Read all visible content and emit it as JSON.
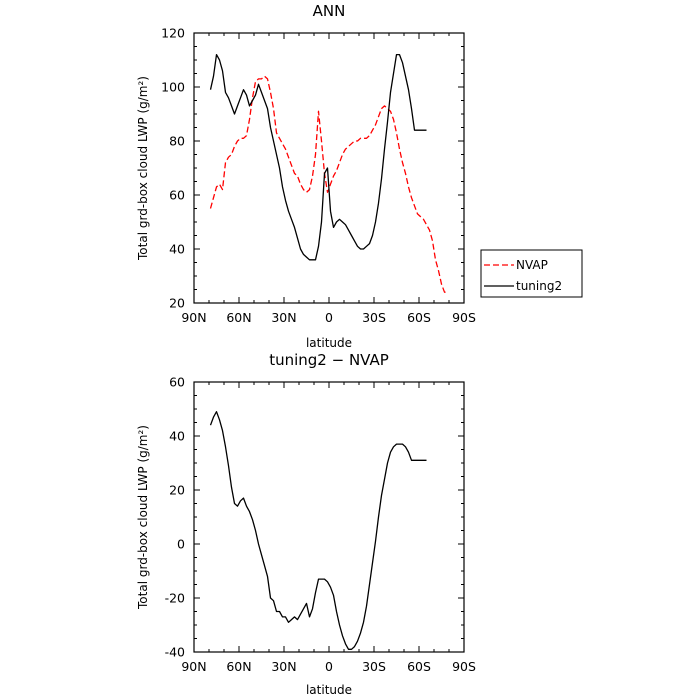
{
  "chart_data": [
    {
      "type": "line",
      "title": "ANN",
      "xlabel": "latitude",
      "ylabel": "Total grd-box cloud LWP (g/m²)",
      "xlim": [
        90,
        -90
      ],
      "ylim": [
        20,
        120
      ],
      "x_ticks": [
        90,
        60,
        30,
        0,
        -30,
        -60,
        -90
      ],
      "x_tick_labels": [
        "90N",
        "60N",
        "30N",
        "0",
        "30S",
        "60S",
        "90S"
      ],
      "y_ticks": [
        20,
        40,
        60,
        80,
        100,
        120
      ],
      "legend_position": "right",
      "series": [
        {
          "name": "NVAP",
          "color": "#ff0000",
          "dash": "dashed",
          "x": [
            79,
            77,
            75,
            73,
            71,
            69,
            67,
            65,
            63,
            61,
            59,
            57,
            55,
            53,
            51,
            49,
            47,
            45,
            43,
            41,
            39,
            37,
            35,
            33,
            31,
            29,
            27,
            25,
            23,
            21,
            19,
            17,
            15,
            13,
            11,
            9,
            7,
            5,
            3,
            1,
            -1,
            -3,
            -5,
            -7,
            -9,
            -11,
            -13,
            -15,
            -17,
            -19,
            -21,
            -23,
            -25,
            -27,
            -29,
            -31,
            -33,
            -35,
            -37,
            -39,
            -41,
            -43,
            -45,
            -47,
            -49,
            -51,
            -53,
            -55,
            -57,
            -59,
            -61,
            -63,
            -65,
            -67,
            -69,
            -71,
            -73,
            -75,
            -77,
            -79
          ],
          "y": [
            55,
            59,
            63,
            64,
            62,
            72,
            74,
            75,
            78,
            80,
            81,
            81,
            82,
            88,
            96,
            102,
            103,
            103,
            104,
            103,
            98,
            92,
            83,
            81,
            79,
            77,
            74,
            71,
            68,
            67,
            64,
            62,
            61,
            62,
            67,
            75,
            91,
            80,
            68,
            61,
            64,
            67,
            69,
            72,
            75,
            77,
            78,
            79,
            80,
            80,
            81,
            81,
            81,
            82,
            84,
            86,
            89,
            92,
            93,
            92,
            91,
            88,
            83,
            77,
            72,
            68,
            63,
            59,
            56,
            53,
            52,
            51,
            49,
            47,
            43,
            36,
            32,
            27,
            24,
            24
          ]
        },
        {
          "name": "tuning2",
          "color": "#000000",
          "dash": "solid",
          "x": [
            79,
            77,
            75,
            73,
            71,
            69,
            67,
            65,
            63,
            61,
            59,
            57,
            55,
            53,
            51,
            49,
            47,
            45,
            43,
            41,
            39,
            37,
            35,
            33,
            31,
            29,
            27,
            25,
            23,
            21,
            19,
            17,
            15,
            13,
            11,
            9,
            7,
            5,
            3,
            1,
            -1,
            -3,
            -5,
            -7,
            -9,
            -11,
            -13,
            -15,
            -17,
            -19,
            -21,
            -23,
            -25,
            -27,
            -29,
            -31,
            -33,
            -35,
            -37,
            -39,
            -41,
            -43,
            -45,
            -47,
            -49,
            -51,
            -53,
            -55,
            -57,
            -59,
            -61,
            -63,
            -65
          ],
          "y": [
            99,
            104,
            112,
            110,
            106,
            98,
            96,
            93,
            90,
            93,
            96,
            99,
            97,
            93,
            95,
            97,
            101,
            98,
            95,
            92,
            85,
            80,
            75,
            70,
            63,
            58,
            54,
            51,
            48,
            44,
            40,
            38,
            37,
            36,
            36,
            36,
            41,
            50,
            68,
            70,
            54,
            48,
            50,
            51,
            50,
            49,
            47,
            45,
            43,
            41,
            40,
            40,
            41,
            42,
            45,
            50,
            57,
            66,
            77,
            87,
            98,
            105,
            112,
            112,
            109,
            104,
            99,
            92,
            84,
            84,
            84,
            84,
            84
          ]
        }
      ]
    },
    {
      "type": "line",
      "title": "tuning2 − NVAP",
      "xlabel": "latitude",
      "ylabel": "Total grd-box cloud LWP (g/m²)",
      "xlim": [
        90,
        -90
      ],
      "ylim": [
        -40,
        60
      ],
      "x_ticks": [
        90,
        60,
        30,
        0,
        -30,
        -60,
        -90
      ],
      "x_tick_labels": [
        "90N",
        "60N",
        "30N",
        "0",
        "30S",
        "60S",
        "90S"
      ],
      "y_ticks": [
        -40,
        -20,
        0,
        20,
        40,
        60
      ],
      "series": [
        {
          "color": "#000000",
          "dash": "solid",
          "x": [
            79,
            77,
            75,
            73,
            71,
            69,
            67,
            65,
            63,
            61,
            59,
            57,
            55,
            53,
            51,
            49,
            47,
            45,
            43,
            41,
            39,
            37,
            35,
            33,
            31,
            29,
            27,
            25,
            23,
            21,
            19,
            17,
            15,
            13,
            11,
            9,
            7,
            5,
            3,
            1,
            -1,
            -3,
            -5,
            -7,
            -9,
            -11,
            -13,
            -15,
            -17,
            -19,
            -21,
            -23,
            -25,
            -27,
            -29,
            -31,
            -33,
            -35,
            -37,
            -39,
            -41,
            -43,
            -45,
            -47,
            -49,
            -51,
            -53,
            -55,
            -57,
            -59,
            -61,
            -63,
            -65
          ],
          "y": [
            44,
            47,
            49,
            46,
            42,
            36,
            29,
            21,
            15,
            14,
            16,
            17,
            14,
            12,
            9,
            5,
            0,
            -4,
            -8,
            -12,
            -20,
            -21,
            -25,
            -25,
            -27,
            -27,
            -29,
            -28,
            -27,
            -28,
            -26,
            -24,
            -22,
            -27,
            -24,
            -18,
            -13,
            -13,
            -13,
            -14,
            -16,
            -19,
            -25,
            -30,
            -34,
            -37,
            -39,
            -39,
            -38,
            -36,
            -33,
            -29,
            -23,
            -15,
            -7,
            1,
            10,
            18,
            24,
            30,
            34,
            36,
            37,
            37,
            37,
            36,
            34,
            31,
            31,
            31,
            31,
            31,
            31
          ]
        }
      ]
    }
  ]
}
